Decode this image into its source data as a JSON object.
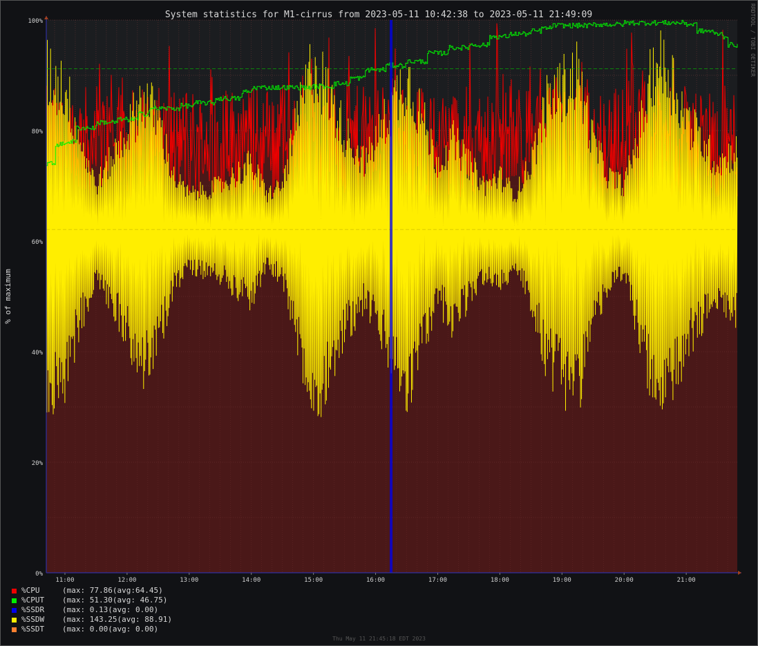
{
  "chart_data": {
    "type": "line",
    "title": "System statistics for M1-cirrus from 2023-05-11 10:42:38 to 2023-05-11 21:49:09",
    "ylabel": "% of maximum",
    "xlabel": "",
    "ylim": [
      0,
      100
    ],
    "y_ticks": [
      "0%",
      "20%",
      "40%",
      "60%",
      "80%",
      "100%"
    ],
    "x_range": [
      "10:42",
      "21:49"
    ],
    "x_ticks": [
      "11:00",
      "12:00",
      "13:00",
      "14:00",
      "15:00",
      "16:00",
      "17:00",
      "18:00",
      "19:00",
      "20:00",
      "21:00"
    ],
    "grid": true,
    "hrules": [
      {
        "value": 91.2,
        "color": "#00c000"
      },
      {
        "value": 62.1,
        "color": "#d0c000"
      }
    ],
    "series": [
      {
        "name": "%CPU",
        "color": "#ee0000",
        "style": "area",
        "avg": 77.8,
        "noise": 6.5,
        "min": 68,
        "max": 100
      },
      {
        "name": "%CPUT",
        "color": "#00ee00",
        "style": "step",
        "points": [
          [
            "10:42",
            74.0
          ],
          [
            "10:50",
            77.5
          ],
          [
            "11:00",
            78.0
          ],
          [
            "11:10",
            80.5
          ],
          [
            "11:30",
            81.5
          ],
          [
            "11:50",
            82.0
          ],
          [
            "12:10",
            83.0
          ],
          [
            "12:20",
            84.0
          ],
          [
            "12:50",
            84.5
          ],
          [
            "13:05",
            85.0
          ],
          [
            "13:25",
            85.8
          ],
          [
            "13:50",
            87.0
          ],
          [
            "14:00",
            87.8
          ],
          [
            "14:20",
            87.8
          ],
          [
            "15:00",
            88.0
          ],
          [
            "15:20",
            88.5
          ],
          [
            "15:35",
            89.5
          ],
          [
            "15:50",
            91.0
          ],
          [
            "16:10",
            91.8
          ],
          [
            "16:30",
            92.5
          ],
          [
            "16:50",
            94.0
          ],
          [
            "17:10",
            95.0
          ],
          [
            "17:30",
            95.5
          ],
          [
            "17:50",
            97.0
          ],
          [
            "18:10",
            97.5
          ],
          [
            "18:30",
            98.0
          ],
          [
            "18:40",
            98.5
          ],
          [
            "18:50",
            99.0
          ],
          [
            "19:10",
            99.0
          ],
          [
            "19:30",
            99.2
          ],
          [
            "20:00",
            99.5
          ],
          [
            "20:30",
            99.5
          ],
          [
            "21:00",
            99.2
          ],
          [
            "21:10",
            98.0
          ],
          [
            "21:25",
            97.5
          ],
          [
            "21:35",
            97.0
          ],
          [
            "21:40",
            95.5
          ],
          [
            "21:49",
            95.5
          ]
        ]
      },
      {
        "name": "%SSDR",
        "color": "#0000ee",
        "style": "spike",
        "points": [
          [
            "16:15",
            100
          ]
        ]
      },
      {
        "name": "%SSDW",
        "color": "#ffee00",
        "style": "oscillating",
        "center": 62,
        "envelope": [
          [
            "10:42",
            35
          ],
          [
            "11:00",
            32
          ],
          [
            "11:15",
            20
          ],
          [
            "11:30",
            10
          ],
          [
            "12:00",
            22
          ],
          [
            "12:15",
            30
          ],
          [
            "12:30",
            25
          ],
          [
            "12:45",
            12
          ],
          [
            "13:00",
            8
          ],
          [
            "13:30",
            10
          ],
          [
            "14:00",
            15
          ],
          [
            "14:15",
            8
          ],
          [
            "14:30",
            10
          ],
          [
            "14:45",
            25
          ],
          [
            "15:00",
            38
          ],
          [
            "15:15",
            30
          ],
          [
            "15:30",
            22
          ],
          [
            "15:50",
            15
          ],
          [
            "16:10",
            25
          ],
          [
            "16:30",
            35
          ],
          [
            "16:45",
            25
          ],
          [
            "17:00",
            15
          ],
          [
            "17:15",
            20
          ],
          [
            "17:30",
            15
          ],
          [
            "17:45",
            10
          ],
          [
            "18:00",
            12
          ],
          [
            "18:15",
            8
          ],
          [
            "18:30",
            15
          ],
          [
            "18:45",
            28
          ],
          [
            "19:00",
            32
          ],
          [
            "19:15",
            35
          ],
          [
            "19:30",
            20
          ],
          [
            "19:45",
            12
          ],
          [
            "20:00",
            10
          ],
          [
            "20:15",
            22
          ],
          [
            "20:30",
            38
          ],
          [
            "20:45",
            35
          ],
          [
            "21:00",
            25
          ],
          [
            "21:15",
            20
          ],
          [
            "21:30",
            15
          ],
          [
            "21:49",
            18
          ]
        ]
      },
      {
        "name": "%SSDT",
        "color": "#ff8030",
        "style": "none"
      }
    ]
  },
  "legend": [
    {
      "name": "%CPU",
      "color": "#ee0000",
      "text": "(max: 77.86(avg:64.45)"
    },
    {
      "name": "%CPUT",
      "color": "#00ee00",
      "text": "(max: 51.30(avg: 46.75)"
    },
    {
      "name": "%SSDR",
      "color": "#0000ee",
      "text": "(max: 0.13(avg: 0.00)"
    },
    {
      "name": "%SSDW",
      "color": "#ffee00",
      "text": "(max: 143.25(avg: 88.91)"
    },
    {
      "name": "%SSDT",
      "color": "#ff8030",
      "text": "(max: 0.00(avg: 0.00)"
    }
  ],
  "footer": "Thu May 11 21:45:18 EDT 2023",
  "watermark": "RRDTOOL / TOBI OETIKER"
}
